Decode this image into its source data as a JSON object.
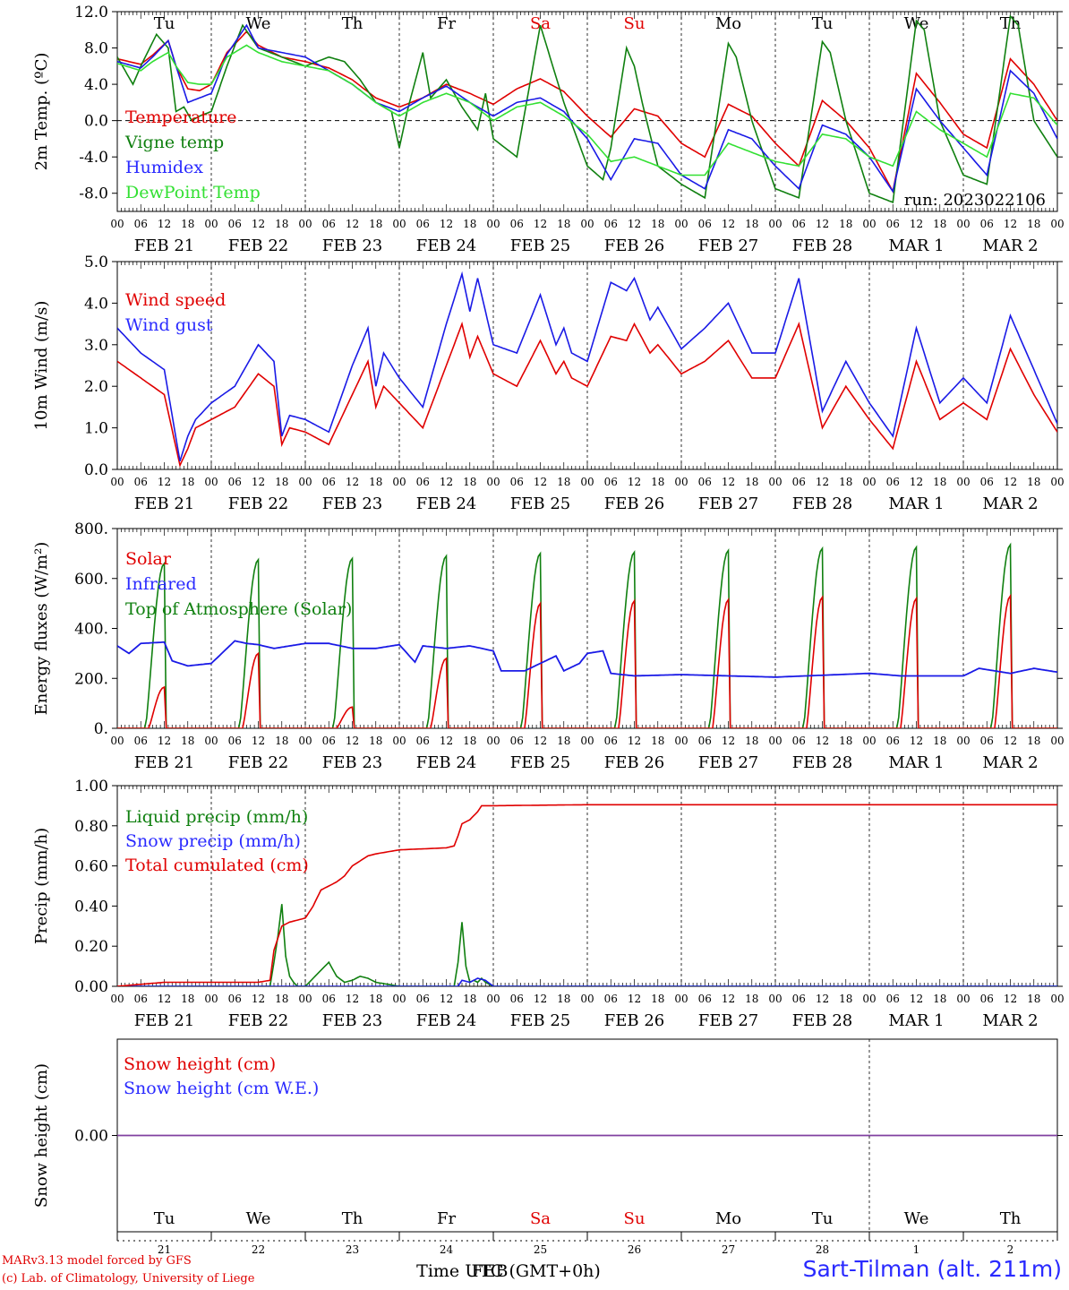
{
  "footer": {
    "model_line": "MARv3.13 model forced by GFS",
    "lab_line": "(c) Lab. of Climatology, University of Liege",
    "station": "Sart-Tilman (alt. 211m)"
  },
  "colors": {
    "red": "#e00000",
    "dark_green": "#108010",
    "blue": "#1a1ae6",
    "light_green": "#33e033",
    "purple": "#8040a0",
    "text_blue": "#2a2aff"
  },
  "x_axis": {
    "hour_ticks": [
      "00",
      "06",
      "12",
      "18"
    ],
    "date_labels": [
      "FEB 21",
      "FEB 22",
      "FEB 23",
      "FEB 24",
      "FEB 25",
      "FEB 26",
      "FEB 27",
      "FEB 28",
      "MAR  1",
      "MAR  2"
    ],
    "weekdays": [
      "Tu",
      "We",
      "Th",
      "Fr",
      "Sa",
      "Su",
      "Mo",
      "Tu",
      "We",
      "Th"
    ],
    "weekend_days": [
      "Sa",
      "Su"
    ],
    "day_numbers": [
      "21",
      "22",
      "23",
      "24",
      "25",
      "26",
      "27",
      "28",
      "1",
      "2"
    ],
    "time_label": "Time UTC (GMT+0h)",
    "time_label_overlay": "FEB"
  },
  "chart_data": [
    {
      "type": "line",
      "ylabel": "2m Temp. (ºC)",
      "ylim": [
        -10,
        12
      ],
      "yticks": [
        "12.0",
        "8.0",
        "4.0",
        "0.0",
        "-4.0",
        "-8.0"
      ],
      "zero_line": "dashed",
      "annotation": "run: 2023022106",
      "series": [
        {
          "name": "Temperature",
          "color": "red",
          "hours": [
            0,
            6,
            9,
            13,
            15,
            18,
            21,
            24,
            28,
            33,
            36,
            42,
            48,
            54,
            60,
            66,
            72,
            78,
            84,
            90,
            96,
            102,
            108,
            114,
            120,
            126,
            132,
            138,
            144,
            150,
            156,
            162,
            168,
            174,
            180,
            186,
            192,
            198,
            204,
            210,
            216,
            222,
            228,
            234,
            240
          ],
          "values": [
            6.8,
            6.2,
            7.2,
            8.8,
            6.0,
            3.5,
            3.3,
            4.0,
            7.5,
            9.8,
            8.3,
            7.0,
            6.5,
            5.8,
            4.5,
            2.5,
            1.5,
            2.5,
            4.0,
            3.0,
            1.8,
            3.5,
            4.6,
            3.2,
            0.5,
            -1.8,
            1.3,
            0.5,
            -2.5,
            -4.0,
            1.8,
            0.5,
            -2.5,
            -5.0,
            2.2,
            0.0,
            -3.0,
            -7.8,
            5.2,
            2.0,
            -1.5,
            -3.0,
            6.8,
            4.0,
            0.0
          ]
        },
        {
          "name": "Vigne temp",
          "color": "dark_green",
          "hours": [
            0,
            4,
            6,
            10,
            13,
            15,
            17,
            19,
            21,
            24,
            28,
            32,
            36,
            42,
            48,
            54,
            58,
            62,
            66,
            70,
            72,
            74,
            78,
            80,
            84,
            88,
            92,
            94,
            96,
            102,
            108,
            114,
            120,
            124,
            126,
            130,
            132,
            134,
            138,
            144,
            150,
            156,
            158,
            162,
            168,
            174,
            180,
            182,
            186,
            192,
            198,
            204,
            206,
            210,
            216,
            222,
            228,
            230,
            234,
            240
          ],
          "values": [
            7.0,
            4.0,
            6.0,
            9.5,
            8.0,
            1.0,
            1.5,
            0.0,
            0.5,
            1.0,
            6.0,
            10.5,
            8.0,
            7.0,
            6.0,
            7.0,
            6.5,
            4.5,
            2.0,
            1.0,
            -3.0,
            1.0,
            7.5,
            2.5,
            4.5,
            1.5,
            -1.0,
            3.0,
            -2.0,
            -4.0,
            10.5,
            2.0,
            -5.0,
            -6.5,
            -3.0,
            8.0,
            6.0,
            2.0,
            -5.0,
            -7.0,
            -8.5,
            8.5,
            7.0,
            0.0,
            -7.5,
            -8.5,
            8.7,
            7.5,
            0.0,
            -8.0,
            -9.0,
            11.0,
            10.0,
            0.0,
            -6.0,
            -7.0,
            11.5,
            10.5,
            0.0,
            -4.0
          ]
        },
        {
          "name": "Humidex",
          "color": "blue",
          "hours": [
            0,
            6,
            9,
            13,
            15,
            18,
            21,
            24,
            28,
            33,
            36,
            42,
            48,
            54,
            60,
            66,
            72,
            78,
            84,
            90,
            96,
            102,
            108,
            114,
            120,
            126,
            132,
            138,
            144,
            150,
            156,
            162,
            168,
            174,
            180,
            186,
            192,
            198,
            204,
            210,
            216,
            222,
            228,
            234,
            240
          ],
          "values": [
            6.5,
            5.8,
            7.0,
            8.8,
            6.0,
            2.0,
            2.5,
            3.0,
            7.3,
            10.5,
            8.0,
            7.5,
            7.0,
            5.5,
            4.0,
            2.0,
            1.0,
            2.5,
            3.8,
            2.0,
            0.5,
            2.0,
            2.5,
            1.0,
            -2.0,
            -6.5,
            -2.0,
            -2.5,
            -6.0,
            -7.5,
            -1.0,
            -2.0,
            -5.0,
            -7.5,
            -0.5,
            -1.5,
            -4.0,
            -7.8,
            3.5,
            0.0,
            -3.0,
            -6.0,
            5.5,
            3.0,
            -2.0
          ]
        },
        {
          "name": "DewPoint Temp",
          "color": "light_green",
          "hours": [
            0,
            6,
            9,
            13,
            15,
            18,
            21,
            24,
            28,
            33,
            36,
            42,
            48,
            54,
            60,
            66,
            72,
            78,
            84,
            90,
            96,
            102,
            108,
            114,
            120,
            126,
            132,
            138,
            144,
            150,
            156,
            162,
            168,
            174,
            180,
            186,
            192,
            198,
            204,
            210,
            216,
            222,
            228,
            234,
            240
          ],
          "values": [
            6.3,
            5.5,
            6.5,
            7.5,
            6.0,
            4.2,
            4.0,
            4.0,
            7.0,
            8.3,
            7.5,
            6.5,
            6.0,
            5.5,
            4.0,
            2.0,
            0.5,
            2.0,
            3.0,
            2.0,
            0.0,
            1.5,
            2.0,
            0.5,
            -1.5,
            -4.5,
            -4.0,
            -5.0,
            -6.0,
            -6.0,
            -2.5,
            -3.5,
            -4.5,
            -5.0,
            -1.5,
            -2.0,
            -4.0,
            -5.0,
            1.0,
            -1.0,
            -2.5,
            -4.0,
            3.0,
            2.5,
            -0.5
          ]
        }
      ]
    },
    {
      "type": "line",
      "ylabel": "10m Wind (m/s)",
      "ylim": [
        0,
        5
      ],
      "yticks": [
        "5.0",
        "4.0",
        "3.0",
        "2.0",
        "1.0",
        "0.0"
      ],
      "series": [
        {
          "name": "Wind speed",
          "color": "red",
          "hours": [
            0,
            6,
            12,
            16,
            18,
            20,
            24,
            30,
            36,
            40,
            42,
            44,
            48,
            54,
            60,
            64,
            66,
            68,
            72,
            78,
            84,
            88,
            90,
            92,
            96,
            102,
            108,
            112,
            114,
            116,
            120,
            126,
            130,
            132,
            136,
            138,
            144,
            150,
            156,
            162,
            168,
            174,
            180,
            186,
            192,
            198,
            204,
            210,
            216,
            222,
            228,
            234,
            240
          ],
          "values": [
            2.6,
            2.2,
            1.8,
            0.1,
            0.5,
            1.0,
            1.2,
            1.5,
            2.3,
            2.0,
            0.6,
            1.0,
            0.9,
            0.6,
            1.8,
            2.6,
            1.5,
            2.0,
            1.6,
            1.0,
            2.5,
            3.5,
            2.7,
            3.2,
            2.3,
            2.0,
            3.1,
            2.3,
            2.6,
            2.2,
            2.0,
            3.2,
            3.1,
            3.5,
            2.8,
            3.0,
            2.3,
            2.6,
            3.1,
            2.2,
            2.2,
            3.5,
            1.0,
            2.0,
            1.2,
            0.5,
            2.6,
            1.2,
            1.6,
            1.2,
            2.9,
            1.8,
            0.9
          ]
        },
        {
          "name": "Wind gust",
          "color": "blue",
          "hours": [
            0,
            6,
            12,
            16,
            18,
            20,
            24,
            30,
            36,
            40,
            42,
            44,
            48,
            54,
            60,
            64,
            66,
            68,
            72,
            78,
            84,
            88,
            90,
            92,
            96,
            102,
            108,
            112,
            114,
            116,
            120,
            126,
            130,
            132,
            136,
            138,
            144,
            150,
            156,
            162,
            168,
            174,
            180,
            186,
            192,
            198,
            204,
            210,
            216,
            222,
            228,
            234,
            240
          ],
          "values": [
            3.4,
            2.8,
            2.4,
            0.2,
            0.8,
            1.2,
            1.6,
            2.0,
            3.0,
            2.6,
            0.8,
            1.3,
            1.2,
            0.9,
            2.5,
            3.4,
            2.0,
            2.8,
            2.2,
            1.5,
            3.5,
            4.7,
            3.8,
            4.6,
            3.0,
            2.8,
            4.2,
            3.0,
            3.4,
            2.8,
            2.6,
            4.5,
            4.3,
            4.6,
            3.6,
            3.9,
            2.9,
            3.4,
            4.0,
            2.8,
            2.8,
            4.6,
            1.4,
            2.6,
            1.6,
            0.8,
            3.4,
            1.6,
            2.2,
            1.6,
            3.7,
            2.4,
            1.1
          ]
        }
      ]
    },
    {
      "type": "line",
      "ylabel": "Energy fluxes (W/m²)",
      "ylim": [
        0,
        800
      ],
      "yticks": [
        "800.",
        "600.",
        "400.",
        "200.",
        "0."
      ],
      "series": [
        {
          "name": "Solar",
          "color": "red",
          "daily_peak": [
            165,
            300,
            85,
            280,
            500,
            510,
            515,
            525,
            520,
            530
          ]
        },
        {
          "name": "Infrared",
          "color": "blue",
          "hours": [
            0,
            3,
            6,
            12,
            14,
            16,
            18,
            24,
            30,
            33,
            36,
            40,
            48,
            54,
            60,
            66,
            72,
            76,
            78,
            84,
            90,
            96,
            98,
            104,
            112,
            114,
            118,
            120,
            124,
            126,
            132,
            144,
            168,
            192,
            200,
            216,
            220,
            228,
            234,
            240
          ],
          "values": [
            330,
            300,
            340,
            345,
            270,
            260,
            250,
            260,
            350,
            340,
            335,
            320,
            340,
            340,
            320,
            320,
            335,
            265,
            330,
            320,
            330,
            310,
            230,
            230,
            290,
            230,
            260,
            300,
            310,
            220,
            210,
            215,
            205,
            220,
            210,
            210,
            240,
            220,
            240,
            225
          ]
        },
        {
          "name": "Top of Atmosphere (Solar)",
          "color": "dark_green",
          "daily_peak": [
            660,
            675,
            680,
            690,
            700,
            705,
            712,
            720,
            725,
            735
          ]
        }
      ]
    },
    {
      "type": "line",
      "ylabel": "Precip (mm/h)",
      "ylim": [
        0,
        1
      ],
      "yticks": [
        "1.00",
        "0.80",
        "0.60",
        "0.40",
        "0.20",
        "0.00"
      ],
      "series": [
        {
          "name": "Liquid precip (mm/h)",
          "color": "dark_green",
          "hours": [
            0,
            39,
            40,
            41,
            42,
            43,
            44,
            45,
            46,
            48,
            50,
            52,
            54,
            56,
            58,
            60,
            62,
            64,
            66,
            72,
            86,
            87,
            88,
            89,
            90,
            91,
            92,
            93,
            94,
            96,
            240
          ],
          "values": [
            0,
            0,
            0.12,
            0.25,
            0.41,
            0.15,
            0.05,
            0.02,
            0.0,
            0.0,
            0.04,
            0.08,
            0.12,
            0.05,
            0.02,
            0.03,
            0.05,
            0.04,
            0.02,
            0.0,
            0.0,
            0.12,
            0.32,
            0.1,
            0.02,
            0.03,
            0.02,
            0.04,
            0.02,
            0.0,
            0.0
          ]
        },
        {
          "name": "Snow precip (mm/h)",
          "color": "blue",
          "hours": [
            0,
            87,
            88,
            90,
            92,
            94,
            96,
            240
          ],
          "values": [
            0,
            0,
            0.03,
            0.02,
            0.04,
            0.03,
            0,
            0
          ]
        },
        {
          "name": "Total cumulated (cm)",
          "color": "red",
          "hours": [
            0,
            6,
            12,
            18,
            24,
            36,
            39,
            40,
            42,
            44,
            48,
            50,
            52,
            54,
            56,
            58,
            60,
            64,
            66,
            72,
            84,
            86,
            87,
            88,
            90,
            92,
            93,
            96,
            120,
            240
          ],
          "values": [
            0.0,
            0.01,
            0.02,
            0.02,
            0.02,
            0.02,
            0.03,
            0.18,
            0.3,
            0.32,
            0.34,
            0.4,
            0.48,
            0.5,
            0.52,
            0.55,
            0.6,
            0.65,
            0.66,
            0.68,
            0.69,
            0.7,
            0.75,
            0.81,
            0.83,
            0.87,
            0.9,
            0.9,
            0.905,
            0.905
          ]
        }
      ]
    },
    {
      "type": "line",
      "ylabel": "Snow height (cm)",
      "yticks": [
        "0.00"
      ],
      "series": [
        {
          "name": "Snow height (cm)",
          "color": "red",
          "hours": [
            0,
            240
          ],
          "values": [
            0.0,
            0.0
          ]
        },
        {
          "name": "Snow height (cm W.E.)",
          "color": "blue",
          "hours": [
            0,
            240
          ],
          "values": [
            0.0,
            0.0
          ]
        }
      ]
    }
  ]
}
